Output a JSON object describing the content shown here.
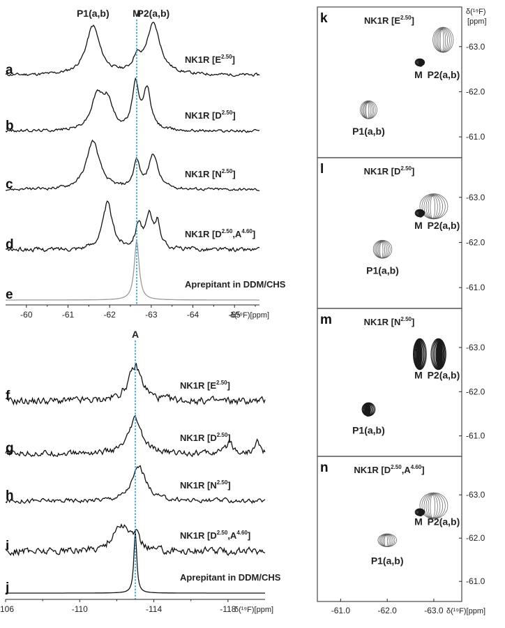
{
  "chart_data": [
    {
      "type": "line",
      "panel": "a-e",
      "xlim": [
        -59.5,
        -65.6
      ],
      "x_ticks": [
        "-60",
        "-61",
        "-62",
        "-63",
        "-64",
        "-65"
      ],
      "x_tick_values": [
        -60,
        -61,
        -62,
        -63,
        -64,
        -65
      ],
      "xlabel": "δ(¹⁹F)[ppm]",
      "peak_labels": [
        {
          "text": "P1(a,b)",
          "x": -61.6
        },
        {
          "text": "M",
          "x": -62.65
        },
        {
          "text": "P2(a,b)",
          "x": -63.05
        }
      ],
      "reference_line_x": -62.65,
      "series": [
        {
          "letter": "a",
          "name": "NK1R [E",
          "sup": "2.50",
          "tail": "]",
          "color": "#111111",
          "noise": 0.02,
          "peaks": [
            {
              "x": -61.6,
              "h": 0.82,
              "w": 0.2
            },
            {
              "x": -62.65,
              "h": 0.22,
              "w": 0.1
            },
            {
              "x": -63.05,
              "h": 0.85,
              "w": 0.2
            }
          ]
        },
        {
          "letter": "b",
          "name": "NK1R [D",
          "sup": "2.50",
          "tail": "]",
          "color": "#111111",
          "noise": 0.02,
          "peaks": [
            {
              "x": -61.7,
              "h": 0.55,
              "w": 0.17
            },
            {
              "x": -61.95,
              "h": 0.45,
              "w": 0.15
            },
            {
              "x": -62.62,
              "h": 0.75,
              "w": 0.09
            },
            {
              "x": -62.9,
              "h": 0.68,
              "w": 0.11
            }
          ]
        },
        {
          "letter": "c",
          "name": "NK1R [N",
          "sup": "2.50",
          "tail": "]",
          "color": "#111111",
          "noise": 0.02,
          "peaks": [
            {
              "x": -61.6,
              "h": 0.82,
              "w": 0.19
            },
            {
              "x": -62.65,
              "h": 0.45,
              "w": 0.09
            },
            {
              "x": -63.05,
              "h": 0.58,
              "w": 0.13
            }
          ]
        },
        {
          "letter": "d",
          "name": "NK1R [D",
          "sup": "2.50",
          "tail": ",A",
          "sup2": "4.60",
          "tail2": "]",
          "color": "#111111",
          "noise": 0.03,
          "peaks": [
            {
              "x": -61.95,
              "h": 0.78,
              "w": 0.14
            },
            {
              "x": -62.7,
              "h": 0.42,
              "w": 0.09
            },
            {
              "x": -62.95,
              "h": 0.5,
              "w": 0.09
            },
            {
              "x": -63.15,
              "h": 0.42,
              "w": 0.09
            }
          ]
        },
        {
          "letter": "e",
          "name": "Aprepitant in DDM/CHS",
          "color": "#9a9a9a",
          "noise": 0,
          "peaks": [
            {
              "x": -62.65,
              "h": 1.0,
              "w": 0.07
            }
          ]
        }
      ]
    },
    {
      "type": "line",
      "panel": "f-j",
      "xlim": [
        -106,
        -120
      ],
      "x_ticks": [
        "-106",
        "-110",
        "-114",
        "-118"
      ],
      "x_tick_values": [
        -106,
        -110,
        -114,
        -118
      ],
      "xlabel": "δ(¹⁹F)[ppm]",
      "peak_labels": [
        {
          "text": "A",
          "x": -113.0
        }
      ],
      "reference_line_x": -113.0,
      "series": [
        {
          "letter": "f",
          "name": "NK1R [E",
          "sup": "2.50",
          "tail": "]",
          "color": "#111111",
          "noise": 0.05,
          "peaks": [
            {
              "x": -113.0,
              "h": 0.55,
              "w": 0.45
            }
          ]
        },
        {
          "letter": "g",
          "name": "NK1R [D",
          "sup": "2.50",
          "tail": "]",
          "color": "#111111",
          "noise": 0.04,
          "peaks": [
            {
              "x": -113.0,
              "h": 0.55,
              "w": 0.4
            },
            {
              "x": -118.1,
              "h": 0.2,
              "w": 0.2
            },
            {
              "x": -119.6,
              "h": 0.2,
              "w": 0.15
            }
          ]
        },
        {
          "letter": "h",
          "name": "NK1R [N",
          "sup": "2.50",
          "tail": "]",
          "color": "#111111",
          "noise": 0.03,
          "peaks": [
            {
              "x": -113.2,
              "h": 0.55,
              "w": 0.45
            }
          ]
        },
        {
          "letter": "i",
          "name": "NK1R [D",
          "sup": "2.50",
          "tail": ",A",
          "sup2": "4.60",
          "tail2": "]",
          "color": "#111111",
          "noise": 0.05,
          "peaks": [
            {
              "x": -112.2,
              "h": 0.4,
              "w": 0.5
            },
            {
              "x": -113.0,
              "h": 0.2,
              "w": 0.3
            }
          ]
        },
        {
          "letter": "j",
          "name": "Aprepitant in DDM/CHS",
          "color": "#111111",
          "noise": 0,
          "peaks": [
            {
              "x": -113.0,
              "h": 1.0,
              "w": 0.09
            }
          ]
        }
      ]
    },
    {
      "type": "contour",
      "panel": "k-n",
      "x_ticks": [
        "-61.0",
        "-62.0",
        "-63.0"
      ],
      "x_tick_values": [
        -61.0,
        -62.0,
        -63.0
      ],
      "y_ticks": [
        "-63.0",
        "-62.0",
        "-61.0"
      ],
      "y_tick_values": [
        -63.0,
        -62.0,
        -61.0
      ],
      "xlim": [
        -60.5,
        -63.6
      ],
      "ylim": [
        -63.6,
        -60.6
      ],
      "xlabel": "δ(¹⁹F)[ppm]",
      "ylabel": "δ(¹⁹F)",
      "ylabel2": "[ppm]",
      "panels": [
        {
          "letter": "k",
          "name": "NK1R [E",
          "sup": "2.50",
          "tail": "]",
          "m_label": "M",
          "p2_label": "P2(a,b)",
          "p1_label": "P1(a,b)",
          "blobs": [
            {
              "x": -63.2,
              "y": -63.15,
              "rx": 0.22,
              "ry": 0.28,
              "dark": false
            },
            {
              "x": -62.7,
              "y": -62.65,
              "rx": 0.1,
              "ry": 0.08,
              "dark": true
            },
            {
              "x": -61.6,
              "y": -61.6,
              "rx": 0.18,
              "ry": 0.2,
              "dark": false
            }
          ]
        },
        {
          "letter": "l",
          "name": "NK1R [D",
          "sup": "2.50",
          "tail": "]",
          "m_label": "M",
          "p2_label": "P2(a,b)",
          "p1_label": "P1(a,b)",
          "blobs": [
            {
              "x": -63.0,
              "y": -62.8,
              "rx": 0.3,
              "ry": 0.28,
              "dark": false
            },
            {
              "x": -62.7,
              "y": -62.65,
              "rx": 0.1,
              "ry": 0.08,
              "dark": true
            },
            {
              "x": -61.9,
              "y": -61.85,
              "rx": 0.2,
              "ry": 0.2,
              "dark": false
            }
          ]
        },
        {
          "letter": "m",
          "name": "NK1R [N",
          "sup": "2.50",
          "tail": "]",
          "m_label": "M",
          "p2_label": "P2(a,b)",
          "p1_label": "P1(a,b)",
          "blobs": [
            {
              "x": -62.7,
              "y": -62.85,
              "rx": 0.14,
              "ry": 0.35,
              "dark": true
            },
            {
              "x": -63.1,
              "y": -62.85,
              "rx": 0.16,
              "ry": 0.35,
              "dark": true
            },
            {
              "x": -61.6,
              "y": -61.6,
              "rx": 0.14,
              "ry": 0.15,
              "dark": true
            }
          ]
        },
        {
          "letter": "n",
          "name": "NK1R [D",
          "sup": "2.50",
          "tail": ",A",
          "sup2": "4.60",
          "tail2": "]",
          "m_label": "M",
          "p2_label": "P2(a,b)",
          "p1_label": "P1(a,b)",
          "blobs": [
            {
              "x": -63.0,
              "y": -62.75,
              "rx": 0.3,
              "ry": 0.3,
              "dark": false
            },
            {
              "x": -62.7,
              "y": -62.6,
              "rx": 0.1,
              "ry": 0.08,
              "dark": true
            },
            {
              "x": -62.0,
              "y": -61.95,
              "rx": 0.2,
              "ry": 0.15,
              "dark": false
            }
          ]
        }
      ]
    }
  ],
  "colors": {
    "reference_line": "#2a9fd6",
    "trace": "#111111",
    "frame": "#555555",
    "contour": "#5a5a5a",
    "contour_dark": "#1a1a1a"
  }
}
